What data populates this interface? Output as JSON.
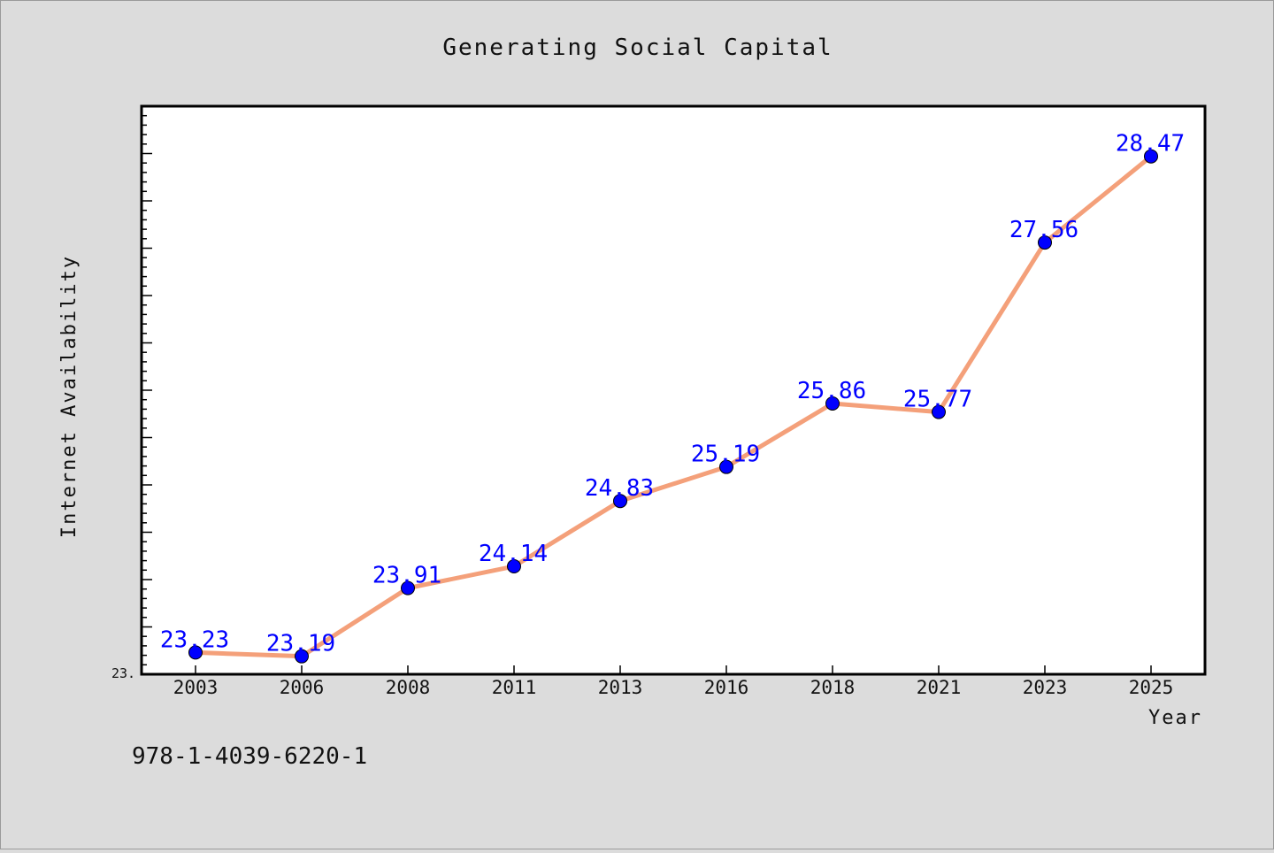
{
  "chart_data": {
    "type": "line",
    "title": "Generating Social Capital",
    "xlabel": "Year",
    "ylabel": "Internet Availability",
    "categories": [
      "2003",
      "2006",
      "2008",
      "2011",
      "2013",
      "2016",
      "2018",
      "2021",
      "2023",
      "2025"
    ],
    "series": [
      {
        "values": [
          23.23,
          23.19,
          23.91,
          24.14,
          24.83,
          25.19,
          25.86,
          25.77,
          27.56,
          28.47
        ],
        "labels": [
          "23.23",
          "23.19",
          "23.91",
          "24.14",
          "24.83",
          "25.19",
          "25.86",
          "25.77",
          "27.56",
          "28.47"
        ]
      }
    ],
    "ylim": [
      23.0,
      29.0
    ],
    "y_tick_label": "23.",
    "grid": false,
    "line_color": "#f4a07a",
    "marker_color": "#0000ff"
  },
  "footer": {
    "isbn": "978-1-4039-6220-1"
  }
}
